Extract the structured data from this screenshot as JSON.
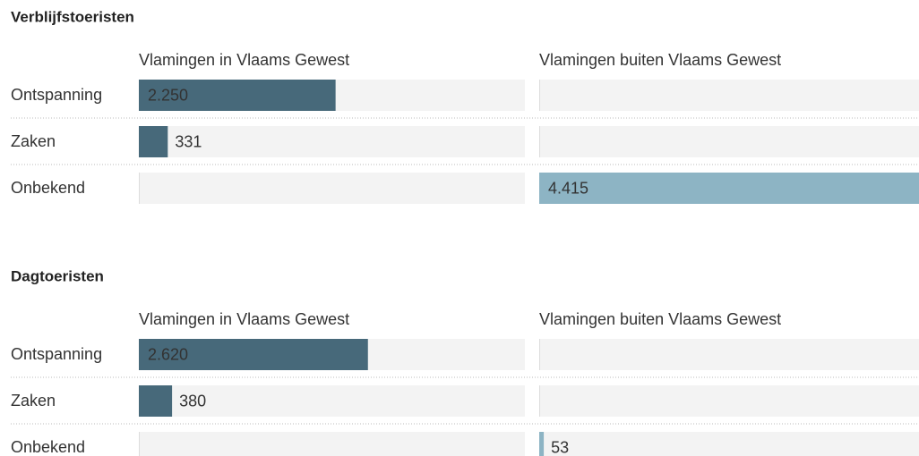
{
  "chart_data": [
    {
      "type": "bar",
      "title": "Verblijfstoeristen",
      "categories": [
        "Ontspanning",
        "Zaken",
        "Onbekend"
      ],
      "xlim": [
        0,
        4415
      ],
      "series": [
        {
          "name": "Vlamingen in Vlaams Gewest",
          "color": "#47697a",
          "values": [
            2250,
            331,
            null
          ],
          "value_labels": [
            "2.250",
            "331",
            null
          ]
        },
        {
          "name": "Vlamingen buiten Vlaams Gewest",
          "color": "#8db4c4",
          "values": [
            null,
            null,
            4415
          ],
          "value_labels": [
            null,
            null,
            "4.415"
          ]
        }
      ]
    },
    {
      "type": "bar",
      "title": "Dagtoeristen",
      "categories": [
        "Ontspanning",
        "Zaken",
        "Onbekend"
      ],
      "xlim": [
        0,
        4415
      ],
      "series": [
        {
          "name": "Vlamingen in Vlaams Gewest",
          "color": "#47697a",
          "values": [
            2620,
            380,
            null
          ],
          "value_labels": [
            "2.620",
            "380",
            null
          ]
        },
        {
          "name": "Vlamingen buiten Vlaams Gewest",
          "color": "#8db4c4",
          "values": [
            null,
            null,
            53
          ],
          "value_labels": [
            null,
            null,
            "53"
          ]
        }
      ]
    }
  ]
}
